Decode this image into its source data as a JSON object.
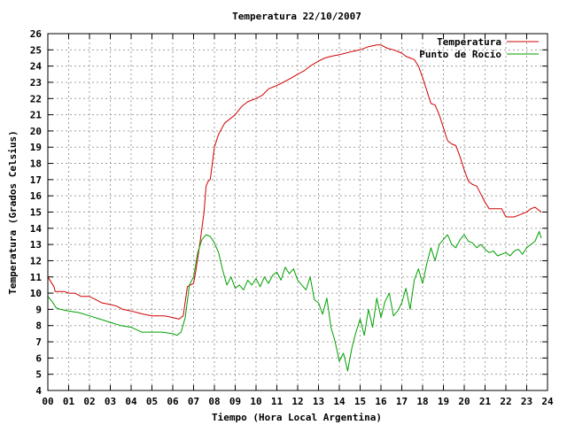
{
  "chart_data": {
    "type": "line",
    "title": "Temperatura 22/10/2007",
    "xlabel": "Tiempo (Hora Local Argentina)",
    "ylabel": "Temperatura (Grados Celsius)",
    "xlim": [
      0,
      24
    ],
    "ylim": [
      4,
      26
    ],
    "x_ticks": [
      "00",
      "01",
      "02",
      "03",
      "04",
      "05",
      "06",
      "07",
      "08",
      "09",
      "10",
      "11",
      "12",
      "13",
      "14",
      "15",
      "16",
      "17",
      "18",
      "19",
      "20",
      "21",
      "22",
      "23",
      "24"
    ],
    "y_ticks": [
      4,
      5,
      6,
      7,
      8,
      9,
      10,
      11,
      12,
      13,
      14,
      15,
      16,
      17,
      18,
      19,
      20,
      21,
      22,
      23,
      24,
      25,
      26
    ],
    "grid": true,
    "legend_position": "top-right",
    "series": [
      {
        "name": "Temperatura",
        "color": "#d00000",
        "x": [
          0.0,
          0.15,
          0.3,
          0.35,
          0.8,
          1.0,
          1.3,
          1.6,
          2.0,
          2.3,
          2.6,
          3.0,
          3.3,
          3.6,
          4.0,
          4.3,
          4.6,
          5.0,
          5.3,
          5.6,
          6.0,
          6.3,
          6.5,
          6.7,
          7.0,
          7.1,
          7.3,
          7.5,
          7.6,
          7.7,
          7.8,
          7.9,
          8.0,
          8.2,
          8.5,
          8.8,
          9.0,
          9.3,
          9.6,
          10.0,
          10.3,
          10.6,
          11.0,
          11.3,
          11.6,
          12.0,
          12.3,
          12.6,
          13.0,
          13.3,
          13.6,
          14.0,
          14.3,
          14.6,
          15.0,
          15.4,
          15.8,
          16.0,
          16.3,
          16.6,
          17.0,
          17.2,
          17.4,
          17.6,
          17.8,
          18.0,
          18.2,
          18.4,
          18.6,
          18.8,
          19.0,
          19.2,
          19.4,
          19.6,
          19.8,
          20.0,
          20.2,
          20.4,
          20.6,
          20.8,
          21.0,
          21.2,
          21.4,
          21.6,
          21.8,
          22.0,
          22.2,
          22.4,
          22.6,
          22.8,
          23.0,
          23.2,
          23.4,
          23.6,
          23.7
        ],
        "values": [
          11.0,
          10.7,
          10.4,
          10.1,
          10.1,
          10.0,
          10.0,
          9.8,
          9.8,
          9.6,
          9.4,
          9.3,
          9.2,
          9.0,
          8.9,
          8.8,
          8.7,
          8.6,
          8.6,
          8.6,
          8.5,
          8.4,
          8.6,
          10.4,
          10.6,
          11.3,
          13.0,
          15.0,
          16.6,
          16.9,
          17.0,
          18.0,
          19.0,
          19.8,
          20.5,
          20.8,
          21.0,
          21.5,
          21.8,
          22.0,
          22.2,
          22.6,
          22.8,
          23.0,
          23.2,
          23.5,
          23.7,
          24.0,
          24.3,
          24.5,
          24.6,
          24.7,
          24.8,
          24.9,
          25.0,
          25.2,
          25.3,
          25.3,
          25.1,
          25.0,
          24.8,
          24.6,
          24.5,
          24.4,
          24.0,
          23.3,
          22.5,
          21.7,
          21.6,
          21.0,
          20.2,
          19.4,
          19.2,
          19.1,
          18.4,
          17.6,
          16.9,
          16.7,
          16.6,
          16.1,
          15.6,
          15.2,
          15.2,
          15.2,
          15.2,
          14.7,
          14.7,
          14.7,
          14.8,
          14.9,
          15.0,
          15.2,
          15.3,
          15.1,
          15.0
        ]
      },
      {
        "name": "Punto de Rocío",
        "color": "#00a000",
        "x": [
          0.0,
          0.2,
          0.4,
          0.6,
          1.0,
          1.5,
          2.0,
          2.5,
          3.0,
          3.5,
          4.0,
          4.5,
          5.0,
          5.5,
          6.0,
          6.2,
          6.4,
          6.6,
          6.8,
          7.0,
          7.2,
          7.4,
          7.6,
          7.8,
          8.0,
          8.2,
          8.4,
          8.6,
          8.8,
          9.0,
          9.2,
          9.4,
          9.6,
          9.8,
          10.0,
          10.2,
          10.4,
          10.6,
          10.8,
          11.0,
          11.2,
          11.4,
          11.6,
          11.8,
          12.0,
          12.2,
          12.4,
          12.6,
          12.8,
          13.0,
          13.2,
          13.4,
          13.6,
          13.8,
          14.0,
          14.2,
          14.4,
          14.6,
          14.8,
          15.0,
          15.2,
          15.4,
          15.6,
          15.8,
          16.0,
          16.2,
          16.4,
          16.6,
          16.8,
          17.0,
          17.2,
          17.4,
          17.6,
          17.8,
          18.0,
          18.2,
          18.4,
          18.6,
          18.8,
          19.0,
          19.2,
          19.4,
          19.6,
          19.8,
          20.0,
          20.2,
          20.4,
          20.6,
          20.8,
          21.0,
          21.2,
          21.4,
          21.6,
          21.8,
          22.0,
          22.2,
          22.4,
          22.6,
          22.8,
          23.0,
          23.2,
          23.4,
          23.6,
          23.7
        ],
        "values": [
          9.8,
          9.5,
          9.1,
          9.0,
          8.9,
          8.8,
          8.6,
          8.4,
          8.2,
          8.0,
          7.9,
          7.6,
          7.6,
          7.6,
          7.5,
          7.4,
          7.6,
          8.5,
          10.5,
          11.0,
          12.5,
          13.3,
          13.6,
          13.5,
          13.1,
          12.5,
          11.4,
          10.5,
          11.0,
          10.3,
          10.5,
          10.2,
          10.8,
          10.5,
          10.9,
          10.4,
          11.0,
          10.6,
          11.1,
          11.3,
          10.8,
          11.6,
          11.2,
          11.5,
          10.8,
          10.5,
          10.2,
          11.0,
          9.6,
          9.4,
          8.7,
          9.7,
          7.9,
          7.0,
          5.8,
          6.3,
          5.2,
          6.6,
          7.6,
          8.4,
          7.4,
          9.0,
          7.9,
          9.7,
          8.5,
          9.5,
          10.0,
          8.6,
          8.9,
          9.4,
          10.3,
          9.0,
          10.8,
          11.5,
          10.6,
          11.8,
          12.8,
          12.0,
          13.0,
          13.3,
          13.6,
          13.0,
          12.8,
          13.3,
          13.6,
          13.2,
          13.1,
          12.8,
          13.0,
          12.7,
          12.5,
          12.6,
          12.3,
          12.4,
          12.5,
          12.3,
          12.6,
          12.7,
          12.4,
          12.8,
          13.0,
          13.2,
          13.8,
          13.4
        ]
      }
    ]
  }
}
